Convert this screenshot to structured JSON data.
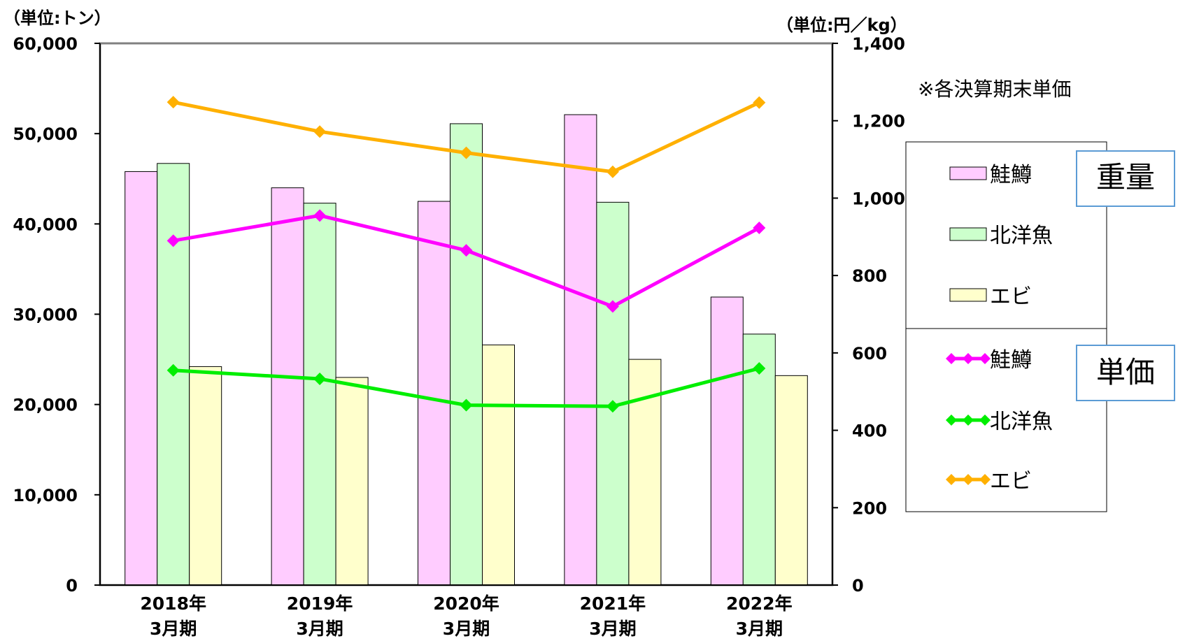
{
  "chart_data": {
    "type": "bar",
    "categories": [
      "2018年\n3月期",
      "2019年\n3月期",
      "2020年\n3月期",
      "2021年\n3月期",
      "2022年\n3月期"
    ],
    "y_left": {
      "unit_label": "（単位:トン）",
      "ylim": [
        0,
        60000
      ],
      "ticks": [
        "0",
        "10,000",
        "20,000",
        "30,000",
        "40,000",
        "50,000",
        "60,000"
      ],
      "tick_values": [
        0,
        10000,
        20000,
        30000,
        40000,
        50000,
        60000
      ]
    },
    "y_right": {
      "unit_label": "（単位:円／kg）",
      "ylim": [
        0,
        1400
      ],
      "ticks": [
        "0",
        "200",
        "400",
        "600",
        "800",
        "1,000",
        "1,200",
        "1,400"
      ],
      "tick_values": [
        0,
        200,
        400,
        600,
        800,
        1000,
        1200,
        1400
      ]
    },
    "bar_series": [
      {
        "name": "鮭鱒",
        "color": "#ffccff",
        "values": [
          45800,
          44000,
          42500,
          52100,
          31900
        ]
      },
      {
        "name": "北洋魚",
        "color": "#ccffcc",
        "values": [
          46700,
          42300,
          51100,
          42400,
          27800
        ]
      },
      {
        "name": "エビ",
        "color": "#ffffcc",
        "values": [
          24200,
          23000,
          26600,
          25000,
          23200
        ]
      }
    ],
    "line_series": [
      {
        "name": "鮭鱒",
        "color": "#ff00ff",
        "values": [
          890,
          955,
          865,
          720,
          923
        ]
      },
      {
        "name": "北洋魚",
        "color": "#00ee00",
        "values": [
          555,
          533,
          465,
          462,
          560
        ]
      },
      {
        "name": "エビ",
        "color": "#ffb000",
        "values": [
          1248,
          1172,
          1117,
          1068,
          1247
        ]
      }
    ],
    "annotation": "※各決算期末単価",
    "legend": {
      "placement": "right",
      "group_weight_label": "重量",
      "group_price_label": "単価"
    },
    "grid": false
  }
}
